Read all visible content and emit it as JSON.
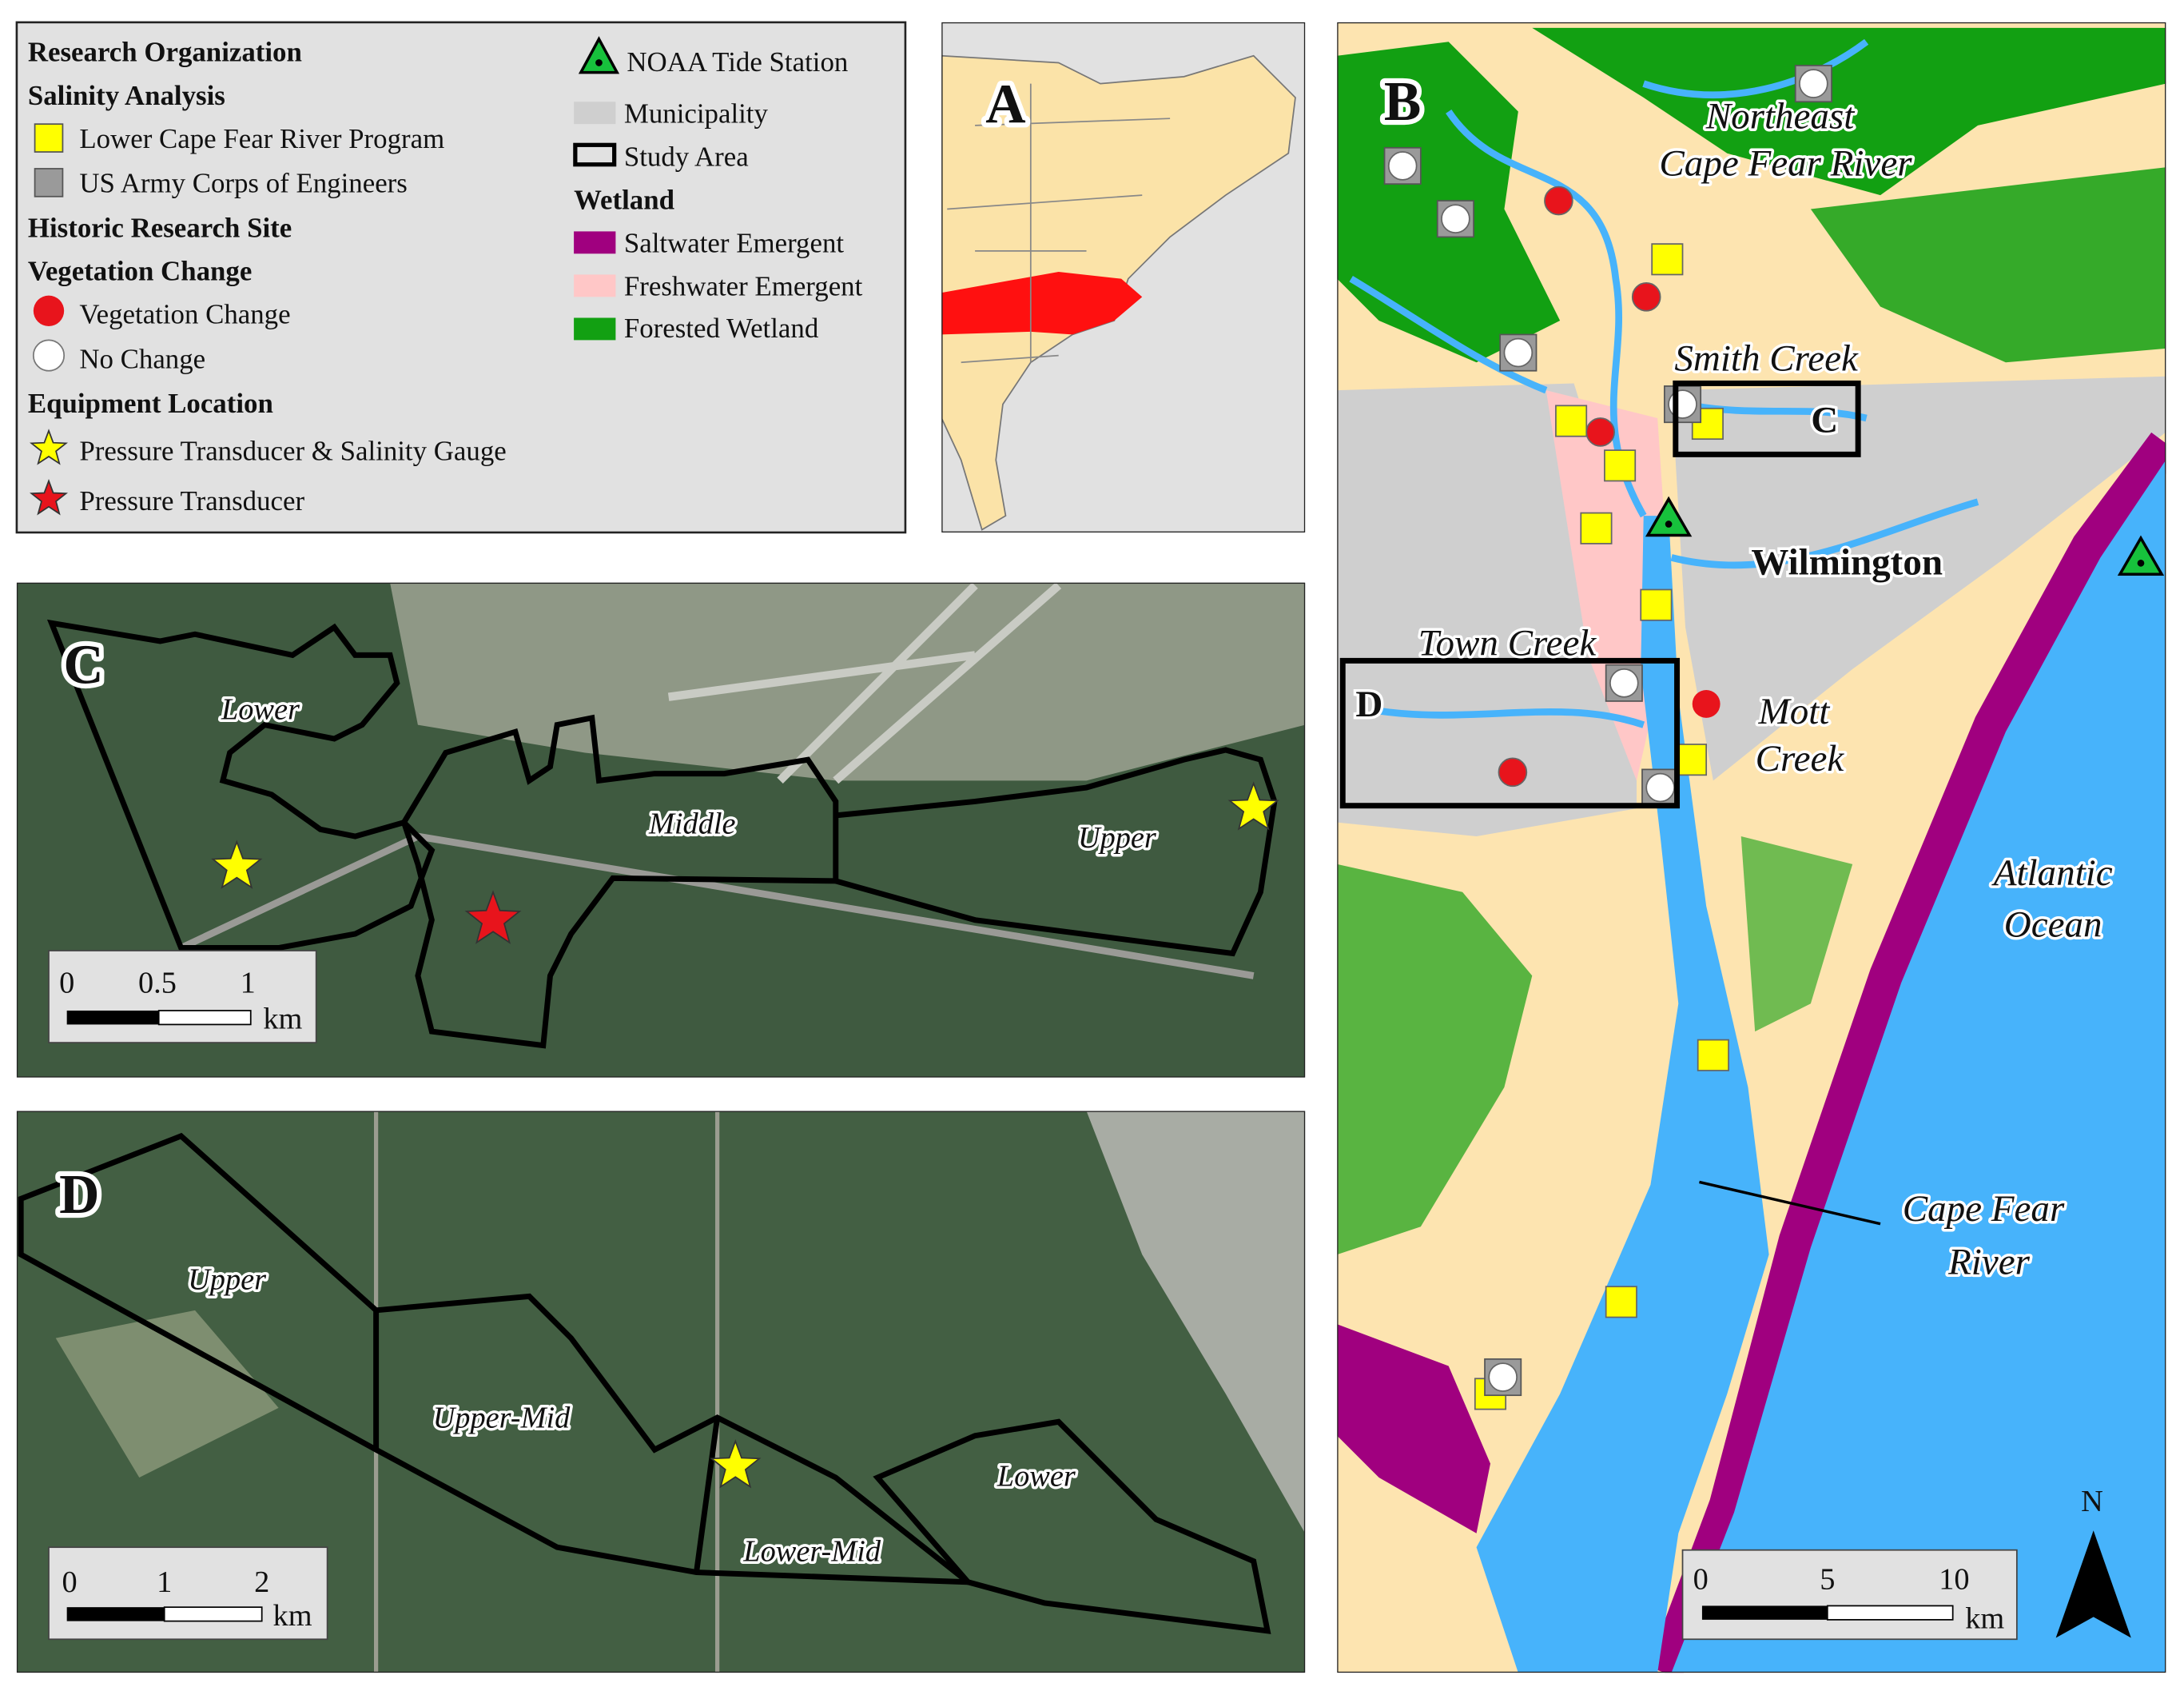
{
  "legend": {
    "research_org": "Research Organization",
    "salinity_analysis": "Salinity Analysis",
    "lcfrp": "Lower Cape Fear River Program",
    "usace": "US Army Corps of Engineers",
    "historic": "Historic Research Site",
    "veg_heading": "Vegetation Change",
    "veg_change": "Vegetation Change",
    "no_change": "No Change",
    "equipment": "Equipment Location",
    "pt_sg": "Pressure Transducer & Salinity Gauge",
    "pt": "Pressure Transducer",
    "noaa": "NOAA Tide Station",
    "municipality": "Municipality",
    "study_area": "Study Area",
    "wetland": "Wetland",
    "saltwater": "Saltwater Emergent",
    "freshwater": "Freshwater Emergent",
    "forested": "Forested Wetland"
  },
  "panel_a": {
    "label": "A"
  },
  "panel_b": {
    "label": "B",
    "places": [
      "Northeast",
      "Cape Fear River",
      "Smith Creek",
      "C",
      "Wilmington",
      "Town Creek",
      "D",
      "Mott",
      "Creek",
      "Atlantic",
      "Ocean",
      "Cape Fear",
      "River"
    ],
    "scale": [
      "0",
      "5",
      "10",
      "km"
    ],
    "north": "N"
  },
  "panel_c": {
    "label": "C",
    "zones": [
      "Lower",
      "Middle",
      "Upper"
    ],
    "scale": [
      "0",
      "0.5",
      "1",
      "km"
    ]
  },
  "panel_d": {
    "label": "D",
    "zones": [
      "Upper",
      "Upper-Mid",
      "Lower-Mid",
      "Lower"
    ],
    "scale": [
      "0",
      "1",
      "2",
      "km"
    ]
  }
}
